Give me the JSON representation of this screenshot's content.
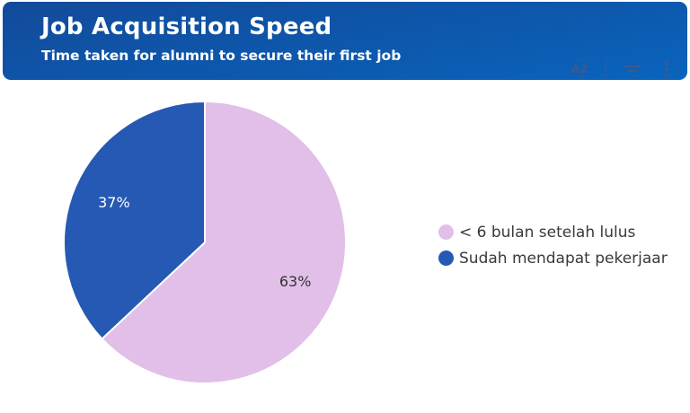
{
  "header": {
    "title": "Job Acquisition Speed",
    "subtitle": "Time taken for alumni to secure their first job",
    "toolbar": {
      "sort_icon": "A↕Z",
      "icons": [
        "sort-az-icon",
        "filter-icon",
        "more-vertical-icon"
      ]
    }
  },
  "legend": {
    "items": [
      {
        "label": "< 6 bulan setelah lulus",
        "color": "#e1bfe8"
      },
      {
        "label": "Sudah mendapat pekerjaan",
        "color": "#2559b3"
      }
    ]
  },
  "slices": [
    {
      "label_text": "63%",
      "color": "#e1bfe8",
      "text_color": "#333333"
    },
    {
      "label_text": "37%",
      "color": "#2559b3",
      "text_color": "#ffffff"
    }
  ],
  "chart_data": {
    "type": "pie",
    "title": "Job Acquisition Speed",
    "subtitle": "Time taken for alumni to secure their first job",
    "categories": [
      "< 6 bulan setelah lulus",
      "Sudah mendapat pekerjaan"
    ],
    "values": [
      63,
      37
    ],
    "unit": "%",
    "colors": [
      "#e1bfe8",
      "#2559b3"
    ],
    "start_angle": "12 o'clock, clockwise",
    "legend_position": "right"
  }
}
